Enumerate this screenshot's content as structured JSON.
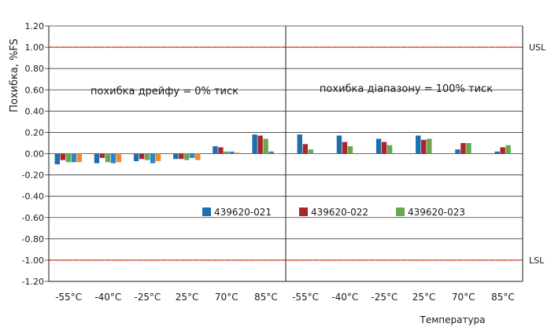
{
  "chart_data": {
    "type": "bar",
    "ylabel": "Похибка, %FS",
    "xlabel": "Температура",
    "ylim": [
      -1.2,
      1.2
    ],
    "y_tick_step": 0.2,
    "grid": true,
    "legend_position": "center",
    "panels": [
      {
        "annotation": "похибка дрейфу = 0% тиск",
        "categories": [
          "-55°C",
          "-40°C",
          "-25°C",
          "25°C",
          "70°C",
          "85°C"
        ],
        "series": [
          {
            "name": "439620-021",
            "values": [
              -0.1,
              -0.09,
              -0.07,
              -0.05,
              0.07,
              0.18
            ]
          },
          {
            "name": "439620-022",
            "values": [
              -0.06,
              -0.04,
              -0.05,
              -0.05,
              0.06,
              0.17
            ]
          },
          {
            "name": "439620-023",
            "values": [
              -0.08,
              -0.08,
              -0.06,
              -0.06,
              0.02,
              0.14
            ]
          }
        ],
        "extra_series": [
          {
            "color": "#2b85c7",
            "values": [
              -0.08,
              -0.09,
              -0.09,
              -0.04,
              0.02,
              0.02
            ]
          },
          {
            "color": "#f08c2d",
            "values": [
              -0.08,
              -0.08,
              -0.07,
              -0.06,
              0.01,
              0.0
            ]
          }
        ]
      },
      {
        "annotation": "похибка діапазону = 100% тиск",
        "categories": [
          "-55°C",
          "-40°C",
          "-25°C",
          "25°C",
          "70°C",
          "85°C"
        ],
        "series": [
          {
            "name": "439620-021",
            "values": [
              0.18,
              0.17,
              0.14,
              0.17,
              0.04,
              0.02
            ]
          },
          {
            "name": "439620-022",
            "values": [
              0.09,
              0.11,
              0.11,
              0.13,
              0.1,
              0.06
            ]
          },
          {
            "name": "439620-023",
            "values": [
              0.04,
              0.07,
              0.08,
              0.14,
              0.1,
              0.08
            ]
          }
        ]
      }
    ],
    "limits": [
      {
        "label": "USL",
        "value": 1.0,
        "color": "#e8553a"
      },
      {
        "label": "LSL",
        "value": -1.0,
        "color": "#e8553a"
      }
    ],
    "colors": [
      "#1f6fae",
      "#a8262b",
      "#6aa84f"
    ]
  }
}
